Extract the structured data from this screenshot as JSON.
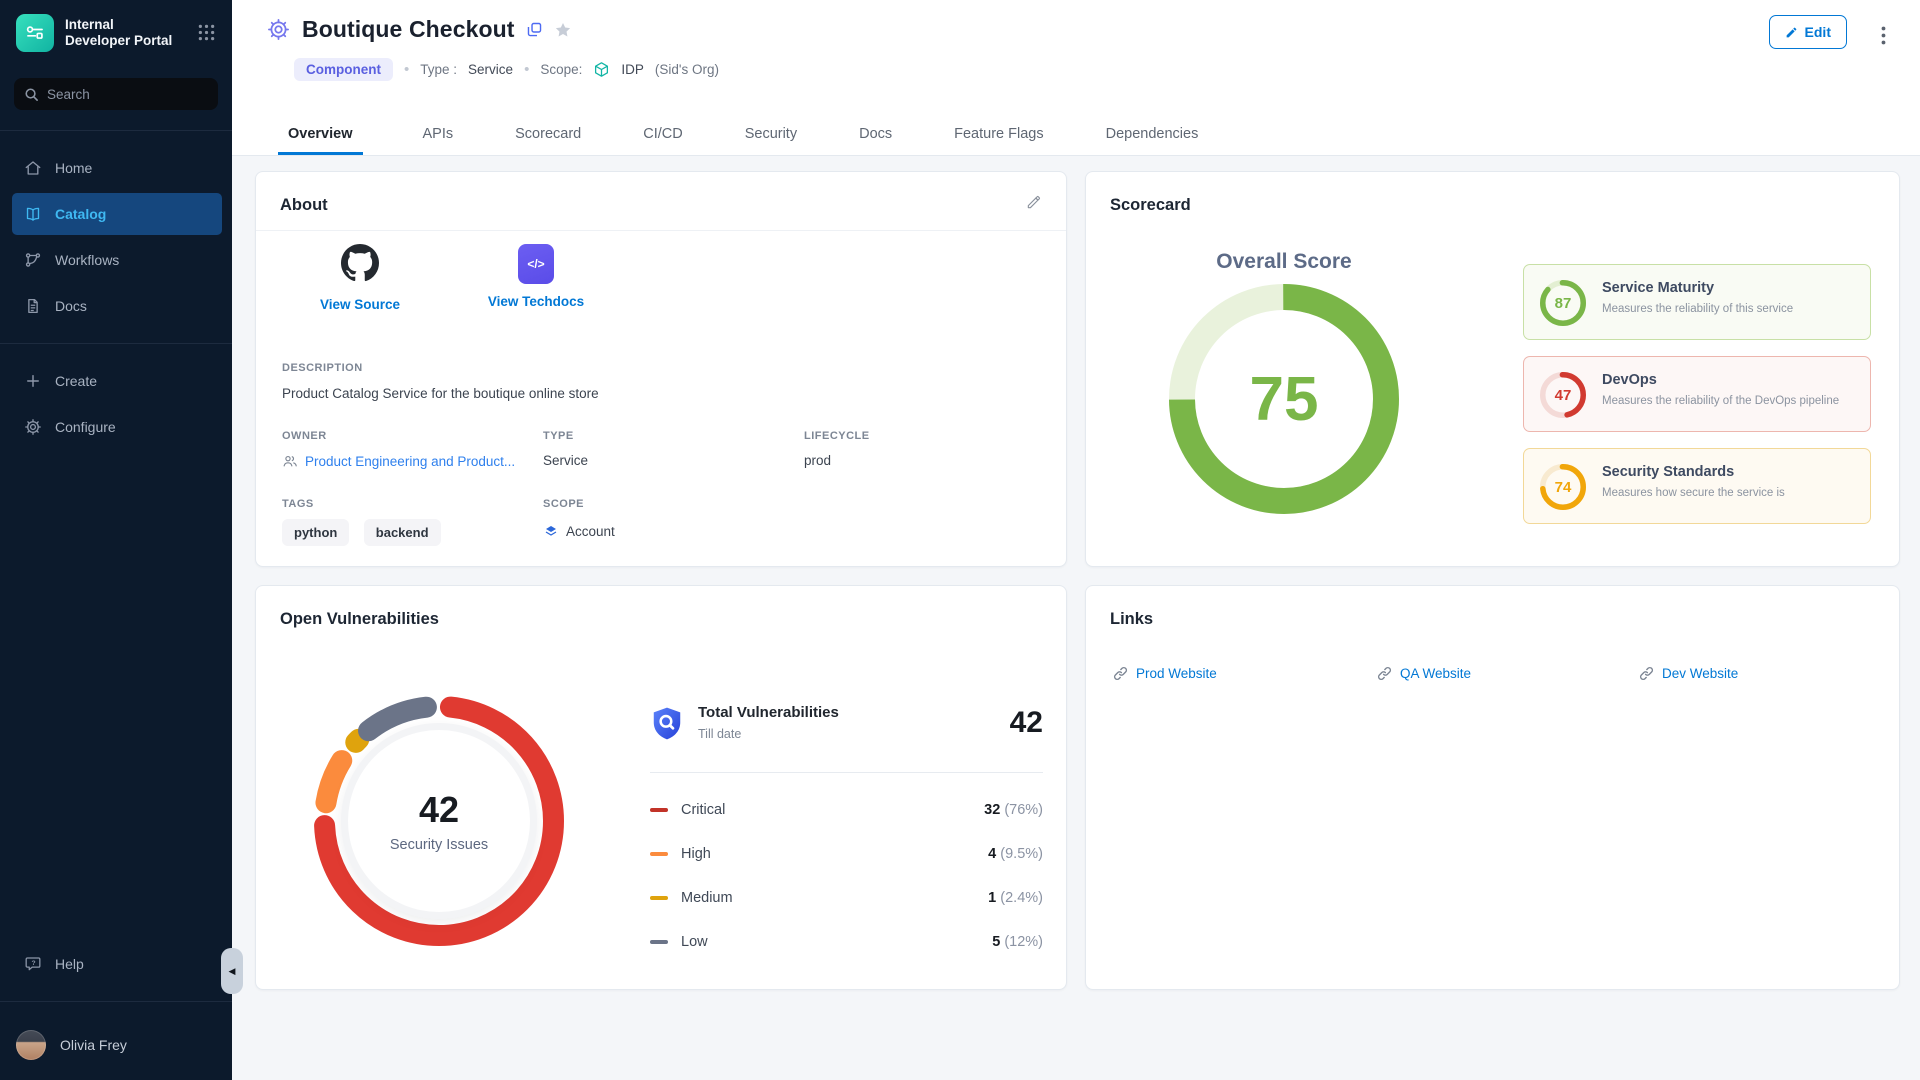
{
  "theme": {
    "accent_blue": "#0278d5",
    "link_blue": "#2f80ed",
    "sidebar_bg": "#0c1a2c",
    "sidebar_selected_bg": "#15477e",
    "sidebar_selected_text": "#3fb9f2",
    "brand_teal": "#14b8a6",
    "title_gear_indigo": "#7678ee"
  },
  "app": {
    "brand_line1": "Internal",
    "brand_line2": "Developer Portal"
  },
  "sidebar": {
    "search_placeholder": "Search",
    "nav": [
      {
        "label": "Home"
      },
      {
        "label": "Catalog"
      },
      {
        "label": "Workflows"
      },
      {
        "label": "Docs"
      }
    ],
    "actions": [
      {
        "label": "Create"
      },
      {
        "label": "Configure"
      }
    ],
    "help_label": "Help",
    "user_name": "Olivia Frey"
  },
  "header": {
    "title": "Boutique Checkout",
    "entity_badge": "Component",
    "type_label": "Type :",
    "type_value": "Service",
    "scope_label": "Scope:",
    "scope_strong": "IDP",
    "scope_muted": "(Sid's Org)",
    "edit_label": "Edit",
    "tabs": [
      {
        "label": "Overview"
      },
      {
        "label": "APIs"
      },
      {
        "label": "Scorecard"
      },
      {
        "label": "CI/CD"
      },
      {
        "label": "Security"
      },
      {
        "label": "Docs"
      },
      {
        "label": "Feature Flags"
      },
      {
        "label": "Dependencies"
      }
    ]
  },
  "about": {
    "title": "About",
    "source_link": "View Source",
    "techdocs_link": "View Techdocs",
    "techdocs_glyph": "</>",
    "description_label": "DESCRIPTION",
    "description": "Product Catalog Service for the boutique online store",
    "owner_label": "OWNER",
    "owner": "Product Engineering and Product...",
    "type_label": "TYPE",
    "type": "Service",
    "lifecycle_label": "LIFECYCLE",
    "lifecycle": "prod",
    "tags_label": "TAGS",
    "tags": [
      {
        "label": "python"
      },
      {
        "label": "backend"
      }
    ],
    "scope_label": "SCOPE",
    "scope": "Account"
  },
  "scorecard": {
    "title": "Scorecard",
    "overall_label": "Overall Score",
    "overall": {
      "score": "75",
      "percent": 75,
      "color": "#7ab648",
      "track": "#e9f2dc"
    },
    "cards": [
      {
        "score": "87",
        "percent": 87,
        "title": "Service Maturity",
        "description": "Measures the reliability of this service",
        "color": "#7ab648",
        "track": "#e3efd2",
        "border": "#c8e0a6",
        "bg": "#f9fbf4"
      },
      {
        "score": "47",
        "percent": 47,
        "title": "DevOps",
        "description": "Measures the reliability of the DevOps pipeline",
        "color": "#d13a30",
        "track": "#f4dad7",
        "border": "#edb6ae",
        "bg": "#fdf7f6"
      },
      {
        "score": "74",
        "percent": 74,
        "title": "Security Standards",
        "description": "Measures how secure the service is",
        "color": "#f1a60a",
        "track": "#f8ead0",
        "border": "#f2d898",
        "bg": "#fefaf2"
      }
    ]
  },
  "vulnerabilities": {
    "title": "Open Vulnerabilities",
    "center_value": "42",
    "center_label": "Security Issues",
    "summary_title": "Total Vulnerabilities",
    "summary_subtitle": "Till date",
    "summary_total": "42",
    "chart": {
      "type": "donut",
      "segments": [
        {
          "label": "Critical",
          "count": 32,
          "percent": 76,
          "color": "#e03a31"
        },
        {
          "label": "High",
          "count": 4,
          "percent": 9.5,
          "color": "#fb8b3d"
        },
        {
          "label": "Medium",
          "count": 1,
          "percent": 2.4,
          "color": "#dfa30d"
        },
        {
          "label": "Low",
          "count": 5,
          "percent": 12,
          "color": "#6b7488"
        }
      ]
    },
    "rows": [
      {
        "label": "Critical",
        "value": "32",
        "pct": "(76%)",
        "color": "#c23328"
      },
      {
        "label": "High",
        "value": "4",
        "pct": "(9.5%)",
        "color": "#fb8b3d"
      },
      {
        "label": "Medium",
        "value": "1",
        "pct": "(2.4%)",
        "color": "#dfa30d"
      },
      {
        "label": "Low",
        "value": "5",
        "pct": "(12%)",
        "color": "#6b7488"
      }
    ]
  },
  "links": {
    "title": "Links",
    "items": [
      {
        "label": "Prod Website"
      },
      {
        "label": "QA Website"
      },
      {
        "label": "Dev Website"
      }
    ]
  }
}
